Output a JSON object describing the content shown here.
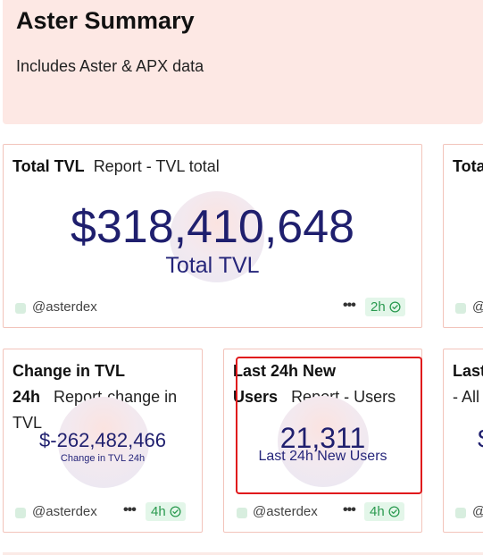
{
  "header": {
    "title": "Aster Summary",
    "subtitle": "Includes Aster & APX data"
  },
  "cards": {
    "total_tvl": {
      "title_bold": "Total TVL",
      "title_rest": "Report - TVL total",
      "value": "$318,410,648",
      "caption": "Total TVL",
      "source": "@asterdex",
      "age": "2h"
    },
    "partial_right_top": {
      "title_bold": "Tota",
      "source": "@"
    },
    "change_tvl": {
      "title_bold_1": "Change in TVL",
      "title_bold_2": "24h",
      "title_rest_2": "Report-change in",
      "title_rest_3": "TVL",
      "value": "$-262,482,466",
      "caption": "Change in TVL 24h",
      "source": "@asterdex",
      "age": "4h"
    },
    "new_users": {
      "title_bold_1": "Last 24h New",
      "title_bold_2": "Users",
      "title_rest_2": "Report - Users",
      "value": "21,311",
      "caption": "Last 24h New Users",
      "source": "@asterdex",
      "age": "4h"
    },
    "partial_right_bottom": {
      "title_line1": "Last",
      "title_line2": "- All",
      "value_fragment": "$",
      "source": "@"
    }
  },
  "icons": {
    "more": "more-horizontal-icon",
    "freshness": "check-circle-icon"
  },
  "colors": {
    "header_bg": "#fde8e4",
    "card_border": "#f2c4bb",
    "value_text": "#1f1f6e",
    "badge_bg": "#e3f6e9",
    "badge_text": "#2a9a4f",
    "highlight": "#e0191c"
  }
}
